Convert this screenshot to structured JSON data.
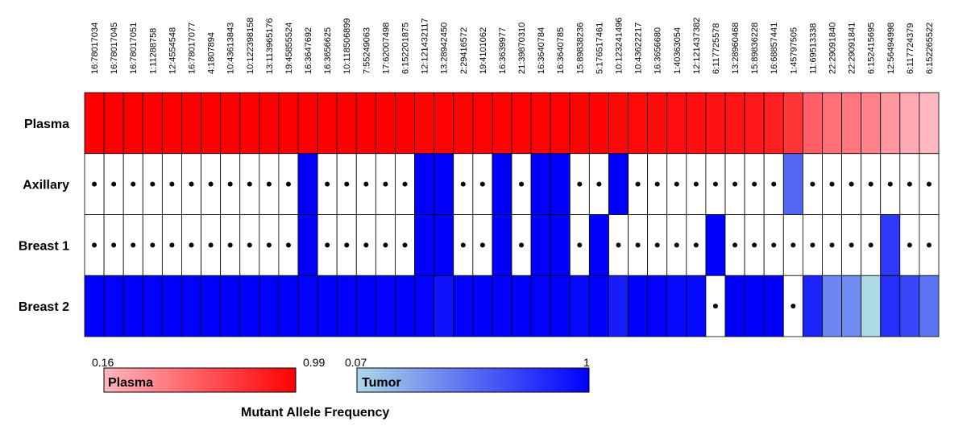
{
  "chart_data": {
    "type": "heatmap",
    "columns": [
      "16:78017034",
      "16:78017045",
      "16:78017051",
      "1:11288758",
      "12:4554548",
      "16:78017077",
      "4:1807894",
      "10:43613843",
      "10:122398158",
      "13:113965176",
      "19:45855524",
      "16:3647692",
      "16:3656625",
      "10:118506899",
      "7:55249063",
      "17:62007498",
      "6:152201875",
      "12:121432117",
      "13:28942450",
      "2:29416572",
      "19:4101062",
      "16:3639977",
      "21:39870310",
      "16:3640784",
      "16:3640785",
      "15:89838236",
      "5:176517461",
      "10:123241496",
      "10:43622217",
      "16:3656680",
      "1:40363054",
      "12:121437382",
      "6:117725578",
      "13:28960468",
      "15:89836228",
      "16:68857441",
      "1:45797505",
      "11:69513338",
      "22:29091840",
      "22:29091841",
      "6:152415695",
      "12:56494998",
      "6:117724379",
      "6:152265522"
    ],
    "rows": [
      "Plasma",
      "Axillary",
      "Breast 1",
      "Breast 2"
    ],
    "values": {
      "Plasma": [
        0.99,
        0.99,
        0.99,
        0.99,
        0.99,
        0.99,
        0.99,
        0.99,
        0.99,
        0.99,
        0.99,
        0.99,
        0.99,
        0.99,
        0.99,
        0.99,
        0.99,
        0.98,
        0.98,
        0.98,
        0.98,
        0.98,
        0.98,
        0.98,
        0.98,
        0.97,
        0.97,
        0.96,
        0.95,
        0.94,
        0.93,
        0.92,
        0.91,
        0.9,
        0.88,
        0.85,
        0.75,
        0.55,
        0.48,
        0.45,
        0.4,
        0.3,
        0.22,
        0.16
      ],
      "Axillary": [
        0,
        0,
        0,
        0,
        0,
        0,
        0,
        0,
        0,
        0,
        0,
        1,
        0,
        0,
        0,
        0,
        0,
        1,
        1,
        0,
        0,
        1,
        0,
        1,
        1,
        0,
        0,
        1,
        0,
        0,
        0,
        0,
        0,
        0,
        0,
        0,
        0.55,
        0,
        0,
        0,
        0,
        0,
        0,
        0
      ],
      "Breast 1": [
        0,
        0,
        0,
        0,
        0,
        0,
        0,
        0,
        0,
        0,
        0,
        1,
        0,
        0,
        0,
        0,
        0,
        1,
        1,
        0,
        0,
        1,
        0,
        1,
        1,
        0,
        1,
        0,
        0,
        0,
        0,
        0,
        1,
        0,
        0,
        0,
        0,
        0,
        0,
        0,
        0,
        0.75,
        0,
        0
      ],
      "Breast 2": [
        1,
        1,
        1,
        1,
        1,
        1,
        1,
        1,
        1,
        1,
        1,
        1,
        1,
        1,
        1,
        1,
        1,
        1,
        0.92,
        1,
        1,
        1,
        1,
        1,
        1,
        0.96,
        1,
        0.88,
        1,
        1,
        0.96,
        0.97,
        0,
        1,
        1,
        1,
        0,
        0.85,
        0.42,
        0.4,
        0.07,
        0.8,
        0.7,
        0.5
      ]
    },
    "legend": [
      {
        "name": "Plasma",
        "min_label": "0.16",
        "max_label": "0.99",
        "min_color": "#ffb6c1",
        "max_color": "#ff0000"
      },
      {
        "name": "Tumor",
        "min_label": "0.07",
        "max_label": "1",
        "min_color": "#add8e6",
        "max_color": "#0000ff"
      }
    ],
    "caption": "Mutant Allele Frequency",
    "zero_marker": "dot"
  }
}
